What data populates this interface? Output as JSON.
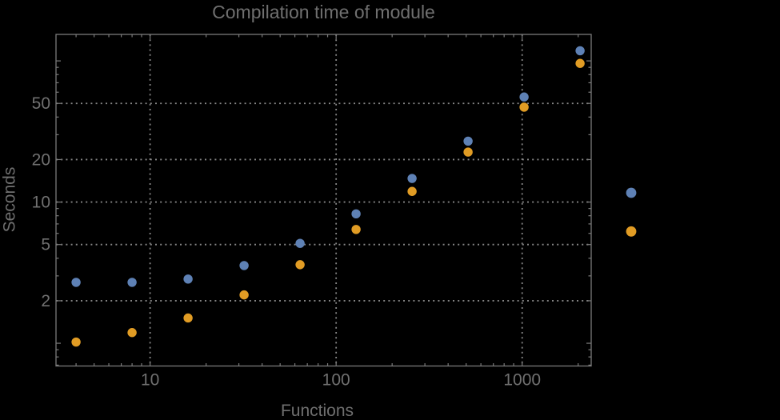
{
  "title": "Compilation time of module",
  "x_axis": {
    "label": "Functions",
    "ticks": [
      {
        "value": 10,
        "label": "10"
      },
      {
        "value": 100,
        "label": "100"
      },
      {
        "value": 1000,
        "label": "1000"
      }
    ]
  },
  "y_axis": {
    "label": "Seconds",
    "ticks": [
      {
        "value": 50,
        "label": "50"
      },
      {
        "value": 20,
        "label": "20"
      },
      {
        "value": 10,
        "label": "10"
      },
      {
        "value": 5,
        "label": "5"
      },
      {
        "value": 2,
        "label": "2"
      }
    ]
  },
  "chart_data": {
    "type": "scatter",
    "title": "Compilation time of module",
    "xlabel": "Functions",
    "ylabel": "Seconds",
    "x_scale": "log",
    "y_scale": "log",
    "x": [
      4,
      8,
      16,
      32,
      64,
      128,
      256,
      512,
      1024,
      2048
    ],
    "series": [
      {
        "name": "series-1",
        "color": "#5E81B5",
        "values": [
          2.7,
          2.7,
          2.85,
          3.55,
          5.1,
          8.25,
          14.7,
          27,
          55.5,
          118
        ]
      },
      {
        "name": "series-2",
        "color": "#E19C24",
        "values": [
          1.02,
          1.19,
          1.51,
          2.2,
          3.6,
          6.4,
          11.9,
          22.6,
          47,
          96
        ]
      }
    ],
    "xlim": [
      3.12,
      2350
    ],
    "ylim": [
      0.69,
      154
    ],
    "x_gridlines": [
      10,
      100,
      1000
    ],
    "y_gridlines": [
      2,
      5,
      10,
      20,
      50
    ],
    "grid_style": "dotted",
    "legend": {
      "position": "right-outside",
      "labels_visible": false,
      "markers": [
        {
          "series": "series-1",
          "color": "#5E81B5"
        },
        {
          "series": "series-2",
          "color": "#E19C24"
        }
      ]
    }
  },
  "colors": {
    "background": "#000000",
    "frame": "#7a7a7a",
    "grid": "#868686",
    "text": "#6f6f6f",
    "series1": "#5E81B5",
    "series2": "#E19C24"
  }
}
